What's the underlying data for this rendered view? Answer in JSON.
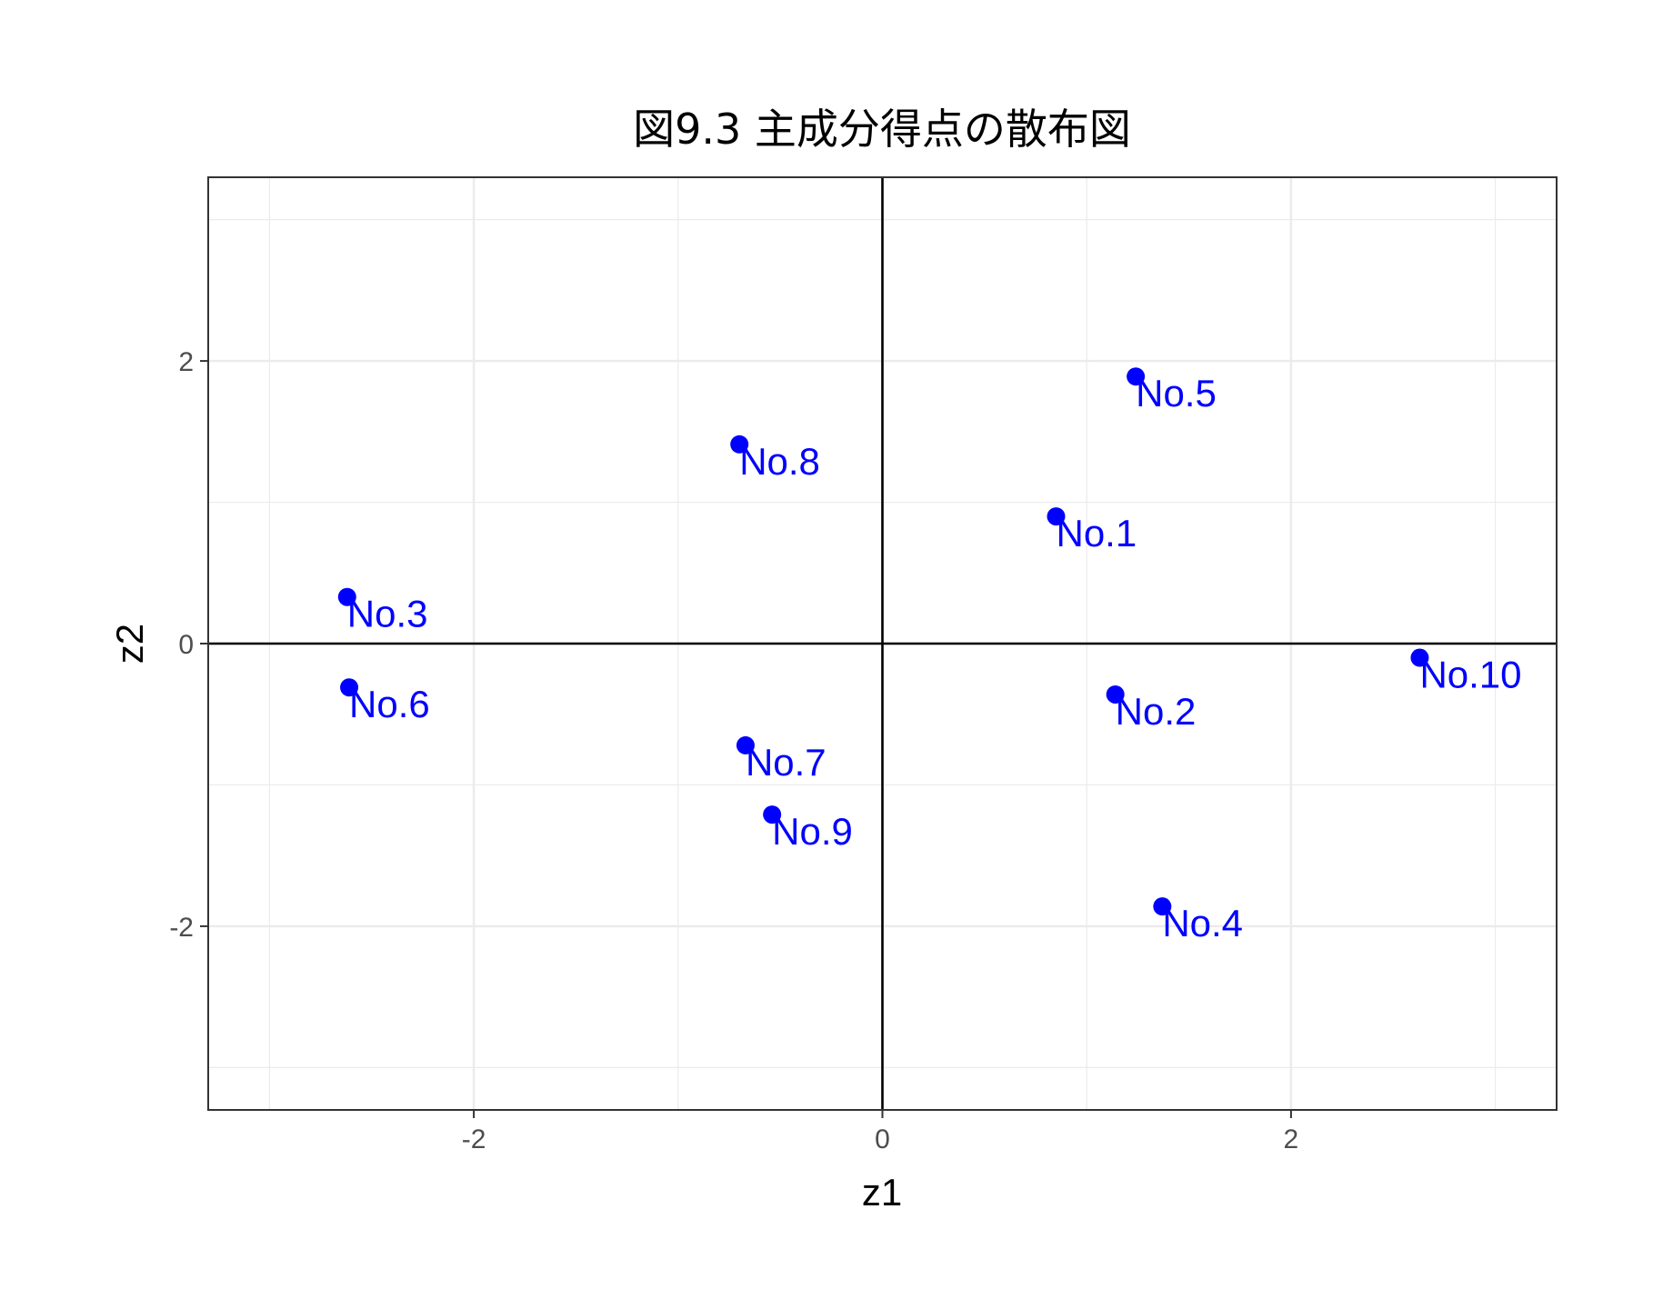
{
  "chart_data": {
    "type": "scatter",
    "title": "図9.3 主成分得点の散布図",
    "xlabel": "z1",
    "ylabel": "z2",
    "xlim": [
      -3.3,
      3.3
    ],
    "ylim": [
      -3.3,
      3.3
    ],
    "x_ticks": [
      -2,
      0,
      2
    ],
    "y_ticks": [
      -2,
      0,
      2
    ],
    "x_tick_labels": [
      "-2",
      "0",
      "2"
    ],
    "y_tick_labels": [
      "-2",
      "0",
      "2"
    ],
    "grid": true,
    "reference_lines": {
      "x": 0,
      "y": 0
    },
    "point_color": "#0000FF",
    "points": [
      {
        "label": "No.1",
        "x": 0.85,
        "y": 0.9
      },
      {
        "label": "No.2",
        "x": 1.14,
        "y": -0.36
      },
      {
        "label": "No.3",
        "x": -2.62,
        "y": 0.33
      },
      {
        "label": "No.4",
        "x": 1.37,
        "y": -1.86
      },
      {
        "label": "No.5",
        "x": 1.24,
        "y": 1.89
      },
      {
        "label": "No.6",
        "x": -2.61,
        "y": -0.31
      },
      {
        "label": "No.7",
        "x": -0.67,
        "y": -0.72
      },
      {
        "label": "No.8",
        "x": -0.7,
        "y": 1.41
      },
      {
        "label": "No.9",
        "x": -0.54,
        "y": -1.21
      },
      {
        "label": "No.10",
        "x": 2.63,
        "y": -0.1
      }
    ]
  }
}
